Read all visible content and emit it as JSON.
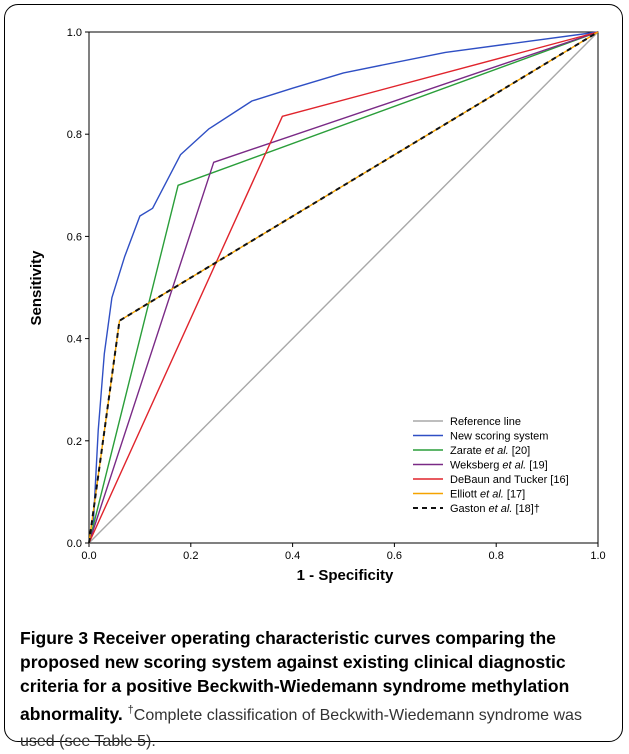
{
  "chart_data": {
    "type": "line",
    "xlabel": "1 - Specificity",
    "ylabel": "Sensitivity",
    "xlim": [
      0,
      1
    ],
    "ylim": [
      0,
      1
    ],
    "xticks": [
      "0.0",
      "0.2",
      "0.4",
      "0.6",
      "0.8",
      "1.0"
    ],
    "yticks": [
      "0.0",
      "0.2",
      "0.4",
      "0.6",
      "0.8",
      "1.0"
    ],
    "grid": false,
    "legend_position": "bottom-right",
    "series": [
      {
        "name": "Reference line",
        "color": "#a8a8a8",
        "dash": "solid",
        "points": [
          [
            0,
            0
          ],
          [
            1,
            1
          ]
        ]
      },
      {
        "name": "New scoring system",
        "color": "#2f4fc4",
        "dash": "solid",
        "points": [
          [
            0,
            0
          ],
          [
            0.008,
            0.03
          ],
          [
            0.018,
            0.22
          ],
          [
            0.03,
            0.37
          ],
          [
            0.045,
            0.48
          ],
          [
            0.07,
            0.56
          ],
          [
            0.1,
            0.64
          ],
          [
            0.125,
            0.655
          ],
          [
            0.18,
            0.76
          ],
          [
            0.235,
            0.81
          ],
          [
            0.32,
            0.865
          ],
          [
            0.4,
            0.89
          ],
          [
            0.5,
            0.92
          ],
          [
            0.7,
            0.96
          ],
          [
            1,
            1
          ]
        ]
      },
      {
        "name": "Zarate et al. [20]",
        "color": "#2a9e3a",
        "dash": "solid",
        "points": [
          [
            0,
            0
          ],
          [
            0.175,
            0.7
          ],
          [
            1,
            1
          ]
        ]
      },
      {
        "name": "Weksberg et al. [19]",
        "color": "#7a2a86",
        "dash": "solid",
        "points": [
          [
            0,
            0
          ],
          [
            0.245,
            0.745
          ],
          [
            1,
            1
          ]
        ]
      },
      {
        "name": "DeBaun and Tucker [16]",
        "color": "#e0242c",
        "dash": "solid",
        "points": [
          [
            0,
            0
          ],
          [
            0.38,
            0.835
          ],
          [
            1,
            1
          ]
        ]
      },
      {
        "name": "Elliott et al. [17]",
        "color": "#f5a300",
        "dash": "solid",
        "points": [
          [
            0,
            0
          ],
          [
            0.06,
            0.435
          ],
          [
            1,
            1
          ]
        ]
      },
      {
        "name": "Gaston et al. [18]†",
        "color": "#111111",
        "dash": "dashed",
        "points": [
          [
            0,
            0
          ],
          [
            0.06,
            0.435
          ],
          [
            1,
            1
          ]
        ]
      }
    ]
  },
  "legend": {
    "entries": [
      {
        "pre": "Reference line",
        "ital": "",
        "post": ""
      },
      {
        "pre": "New scoring system",
        "ital": "",
        "post": ""
      },
      {
        "pre": "Zarate ",
        "ital": "et al.",
        "post": " [20]"
      },
      {
        "pre": "Weksberg ",
        "ital": "et al.",
        "post": " [19]"
      },
      {
        "pre": "DeBaun and Tucker [16]",
        "ital": "",
        "post": ""
      },
      {
        "pre": "Elliott ",
        "ital": "et al.",
        "post": " [17]"
      },
      {
        "pre": "Gaston ",
        "ital": "et al.",
        "post": " [18]†"
      }
    ]
  },
  "caption": {
    "figure_label": "Figure 3",
    "title": "Receiver operating characteristic curves comparing the proposed new scoring system against existing clinical diagnostic criteria for a positive Beckwith-Wiedemann syndrome methylation abnormality.",
    "dagger": "†",
    "note": "Complete classification of Beckwith-Wiedemann syndrome was used (see Table 5)."
  }
}
